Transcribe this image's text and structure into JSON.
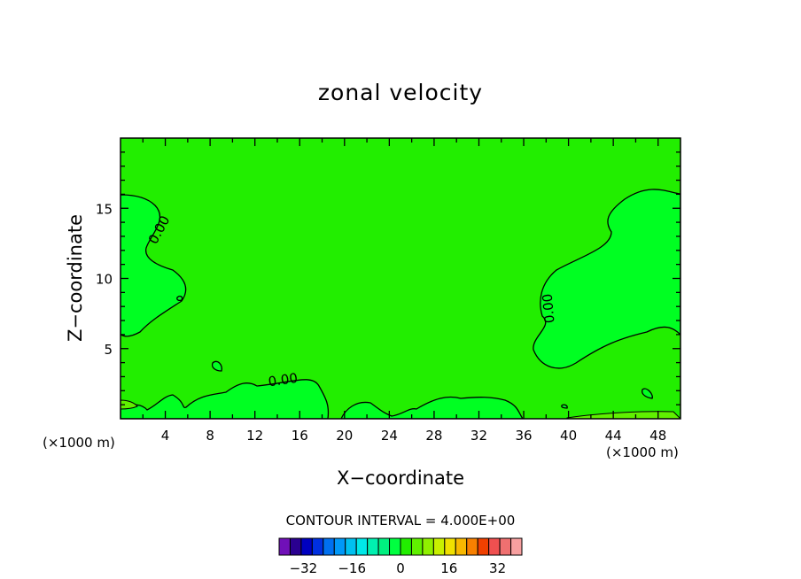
{
  "chart_data": {
    "type": "heatmap",
    "title": "zonal velocity",
    "xlabel": "X−coordinate",
    "ylabel": "Z−coordinate",
    "x_unit": "(×1000 m)",
    "x_unit_right": "(×1000 m)",
    "xlim": [
      0,
      50
    ],
    "ylim": [
      0,
      20
    ],
    "x_ticks": [
      4,
      8,
      12,
      16,
      20,
      24,
      28,
      32,
      36,
      40,
      44,
      48
    ],
    "y_ticks": [
      5,
      10,
      15
    ],
    "contour_level_labels": [
      "0.00",
      "0.00",
      "0.00"
    ],
    "contour_interval": "CONTOUR INTERVAL = 4.000E+00",
    "colorbar_labels": [
      "−32",
      "−16",
      "0",
      "16",
      "32"
    ],
    "colorbar_label_values": [
      -32,
      -16,
      0,
      16,
      32
    ],
    "colorbar_range": [
      -40,
      40
    ],
    "background_color": "#22ee00",
    "negative_region_color": "#00ff22",
    "colorbar_colors": [
      "#7010b8",
      "#2a0090",
      "#0000c0",
      "#0030e0",
      "#0070f0",
      "#0098f8",
      "#00c0f0",
      "#00e8e8",
      "#00f0b0",
      "#00f080",
      "#00ff40",
      "#22ee00",
      "#60f000",
      "#90f000",
      "#c8f000",
      "#f0e000",
      "#f8b800",
      "#f88000",
      "#f04000",
      "#f05050",
      "#f07070",
      "#f8a0a0"
    ]
  }
}
